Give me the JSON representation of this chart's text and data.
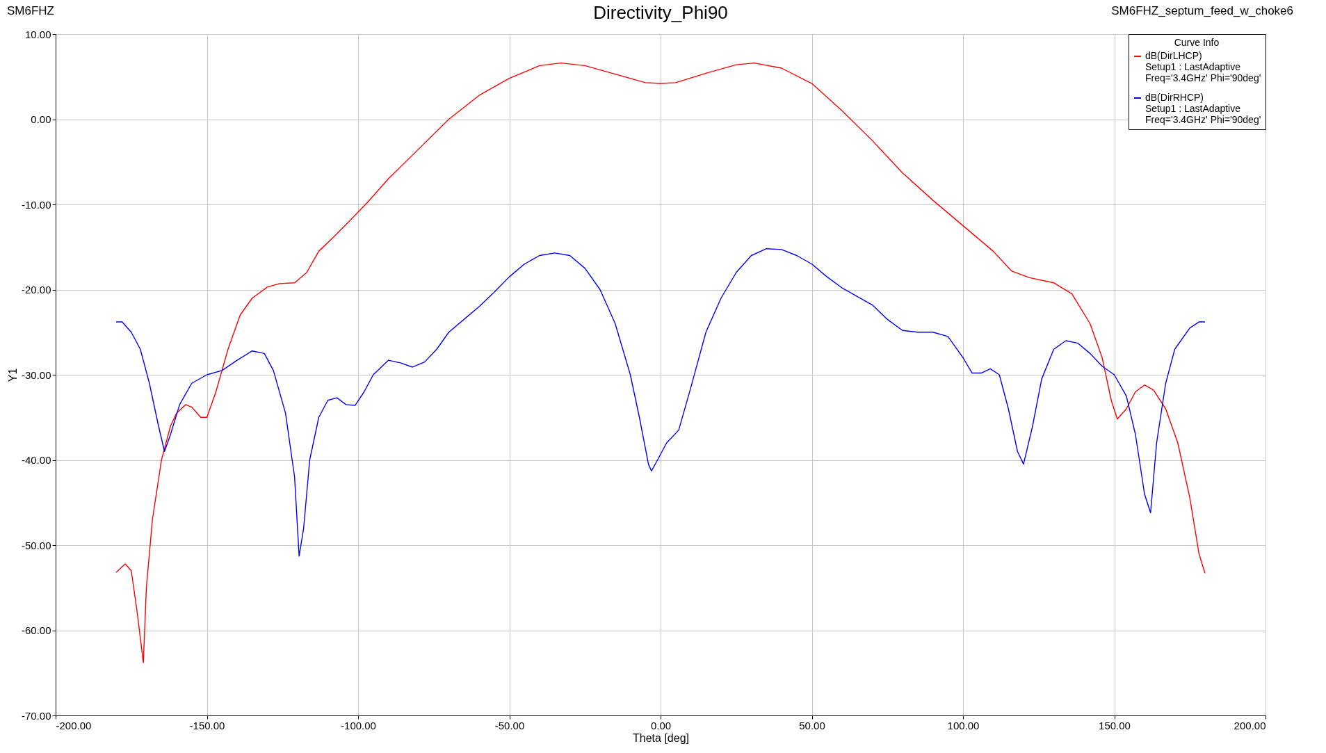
{
  "chart_data": {
    "type": "line",
    "title": "Directivity_Phi90",
    "xlabel": "Theta [deg]",
    "ylabel": "Y1",
    "legend_title": "Curve Info",
    "annotations": [
      "SM6FHZ",
      "SM6FHZ_septum_feed_w_choke6"
    ],
    "xlim": [
      -200,
      200
    ],
    "ylim": [
      -70,
      10
    ],
    "xticks": [
      {
        "value": -200,
        "label": "-200.00"
      },
      {
        "value": -150,
        "label": "-150.00"
      },
      {
        "value": -100,
        "label": "-100.00"
      },
      {
        "value": -50,
        "label": "-50.00"
      },
      {
        "value": 0,
        "label": "0.00"
      },
      {
        "value": 50,
        "label": "50.00"
      },
      {
        "value": 100,
        "label": "100.00"
      },
      {
        "value": 150,
        "label": "150.00"
      },
      {
        "value": 200,
        "label": "200.00"
      }
    ],
    "yticks": [
      {
        "value": 10,
        "label": "10.00"
      },
      {
        "value": 0,
        "label": "0.00"
      },
      {
        "value": -10,
        "label": "-10.00"
      },
      {
        "value": -20,
        "label": "-20.00"
      },
      {
        "value": -30,
        "label": "-30.00"
      },
      {
        "value": -40,
        "label": "-40.00"
      },
      {
        "value": -50,
        "label": "-50.00"
      },
      {
        "value": -60,
        "label": "-60.00"
      },
      {
        "value": -70,
        "label": "-70.00"
      }
    ],
    "grid": true,
    "legend": "top right",
    "marker": "none",
    "line_style": "solid",
    "series": [
      {
        "name": "dB(DirLHCP)\nSetup1 : LastAdaptive\nFreq='3.4GHz' Phi='90deg'",
        "color": "#ff0000",
        "x": [
          -180,
          -177,
          -175,
          -173,
          -171,
          -170,
          -168,
          -165,
          -162,
          -160,
          -157,
          -155,
          -152,
          -150,
          -147,
          -143,
          -139,
          -135,
          -130,
          -126,
          -121,
          -117,
          -113,
          -108,
          -103,
          -97,
          -90,
          -80,
          -70,
          -60,
          -50,
          -40,
          -33,
          -25,
          -15,
          -5,
          0,
          5,
          15,
          25,
          31,
          40,
          50,
          60,
          70,
          80,
          90,
          100,
          110,
          116,
          122,
          130,
          136,
          142,
          146,
          149,
          151,
          154,
          157,
          160,
          163,
          167,
          171,
          175,
          178,
          180
        ],
        "values": [
          -53.2,
          -52.2,
          -53,
          -58,
          -63.8,
          -55,
          -47,
          -40,
          -36,
          -34.5,
          -33.5,
          -33.8,
          -35,
          -35,
          -32,
          -27,
          -23,
          -21,
          -19.7,
          -19.3,
          -19.2,
          -18,
          -15.5,
          -13.8,
          -12,
          -9.8,
          -7,
          -3.5,
          0,
          2.8,
          4.8,
          6.3,
          6.6,
          6.3,
          5.3,
          4.3,
          4.2,
          4.3,
          5.4,
          6.4,
          6.6,
          6,
          4.2,
          1,
          -2.5,
          -6.3,
          -9.5,
          -12.5,
          -15.5,
          -17.8,
          -18.6,
          -19.2,
          -20.5,
          -24,
          -28,
          -33,
          -35.2,
          -34,
          -32,
          -31.2,
          -31.8,
          -34,
          -38,
          -44.5,
          -51,
          -53.3
        ]
      },
      {
        "name": "dB(DirRHCP)\nSetup1 : LastAdaptive\nFreq='3.4GHz' Phi='90deg'",
        "color": "#0000ff",
        "x": [
          -180,
          -178,
          -175,
          -172,
          -169,
          -166,
          -164,
          -162,
          -159,
          -155,
          -150,
          -145,
          -140,
          -135,
          -131,
          -128,
          -124,
          -121,
          -119.5,
          -118,
          -116,
          -113,
          -110,
          -107,
          -104,
          -101,
          -98,
          -95,
          -90,
          -86,
          -82,
          -78,
          -74,
          -70,
          -65,
          -60,
          -55,
          -50,
          -45,
          -40,
          -35,
          -30,
          -25,
          -20,
          -15,
          -10,
          -7,
          -4,
          -3,
          -1,
          2,
          6,
          10,
          15,
          20,
          25,
          30,
          35,
          40,
          45,
          50,
          55,
          60,
          70,
          75,
          80,
          85,
          90,
          95,
          100,
          103,
          106,
          109,
          112,
          115,
          118,
          120,
          123,
          126,
          130,
          134,
          138,
          142,
          146,
          150,
          154,
          157,
          160,
          162,
          164,
          167,
          170,
          175,
          178,
          180
        ],
        "values": [
          -23.8,
          -23.8,
          -25,
          -27,
          -31,
          -36,
          -39,
          -37,
          -33.5,
          -31,
          -30,
          -29.5,
          -28.3,
          -27.2,
          -27.5,
          -29.5,
          -34.5,
          -42,
          -51.3,
          -48,
          -40,
          -35,
          -33,
          -32.7,
          -33.5,
          -33.6,
          -32,
          -30,
          -28.3,
          -28.6,
          -29.1,
          -28.5,
          -27,
          -25,
          -23.5,
          -22,
          -20.3,
          -18.5,
          -17,
          -16,
          -15.7,
          -16,
          -17.5,
          -20,
          -24,
          -30,
          -35,
          -40.5,
          -41.3,
          -40,
          -38,
          -36.5,
          -31.5,
          -25,
          -21,
          -18,
          -16,
          -15.2,
          -15.3,
          -16,
          -17,
          -18.5,
          -19.8,
          -21.8,
          -23.5,
          -24.8,
          -25,
          -25,
          -25.5,
          -28,
          -29.8,
          -29.8,
          -29.3,
          -30,
          -34,
          -39,
          -40.5,
          -36,
          -30.5,
          -27,
          -26,
          -26.3,
          -27.5,
          -29,
          -30,
          -32.5,
          -37,
          -44,
          -46.2,
          -38,
          -31,
          -27,
          -24.5,
          -23.8,
          -23.8
        ]
      }
    ]
  }
}
